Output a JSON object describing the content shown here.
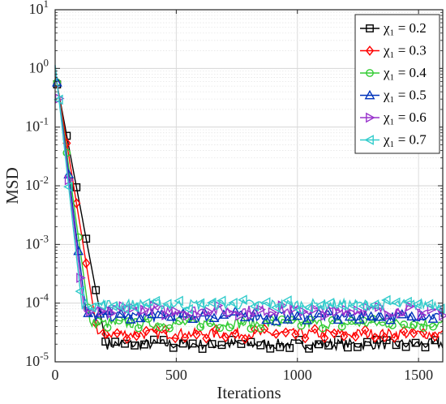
{
  "chart_data": {
    "type": "line",
    "xlabel": "Iterations",
    "ylabel": "MSD",
    "xlim": [
      0,
      1600
    ],
    "ylim": [
      1e-05,
      10
    ],
    "yscale": "log",
    "grid": true,
    "legend_position": "top-right",
    "x_ticks": [
      {
        "value": 0,
        "label": "0"
      },
      {
        "value": 500,
        "label": "500"
      },
      {
        "value": 1000,
        "label": "1000"
      },
      {
        "value": 1500,
        "label": "1500"
      }
    ],
    "y_ticks": [
      {
        "value": 1e-05,
        "base": "10",
        "exp": "-5"
      },
      {
        "value": 0.0001,
        "base": "10",
        "exp": "-4"
      },
      {
        "value": 0.001,
        "base": "10",
        "exp": "-3"
      },
      {
        "value": 0.01,
        "base": "10",
        "exp": "-2"
      },
      {
        "value": 0.1,
        "base": "10",
        "exp": "-1"
      },
      {
        "value": 1,
        "base": "10",
        "exp": "0"
      },
      {
        "value": 10,
        "base": "10",
        "exp": "1"
      }
    ],
    "series": [
      {
        "name": "χ₁ = 0.2",
        "legend_label": "χ₁ = 0.2",
        "color": "#000000",
        "marker": "square",
        "start": 0.8,
        "steady": 2e-05,
        "convergence_iteration": 210
      },
      {
        "name": "χ₁ = 0.3",
        "legend_label": "χ₁ = 0.3",
        "color": "#ff0000",
        "marker": "diamond",
        "start": 0.9,
        "steady": 3e-05,
        "convergence_iteration": 175
      },
      {
        "name": "χ₁ = 0.4",
        "legend_label": "χ₁ = 0.4",
        "color": "#33cc33",
        "marker": "circle",
        "start": 1.0,
        "steady": 4.5e-05,
        "convergence_iteration": 145
      },
      {
        "name": "χ₁ = 0.5",
        "legend_label": "χ₁ = 0.5",
        "color": "#0033bb",
        "marker": "triangle-up",
        "start": 1.05,
        "steady": 6e-05,
        "convergence_iteration": 130
      },
      {
        "name": "χ₁ = 0.6",
        "legend_label": "χ₁ = 0.6",
        "color": "#9933cc",
        "marker": "triangle-right",
        "start": 1.1,
        "steady": 7.5e-05,
        "convergence_iteration": 120
      },
      {
        "name": "χ₁ = 0.7",
        "legend_label": "χ₁ = 0.7",
        "color": "#33cccc",
        "marker": "triangle-left",
        "start": 1.15,
        "steady": 9.5e-05,
        "convergence_iteration": 110
      }
    ]
  }
}
